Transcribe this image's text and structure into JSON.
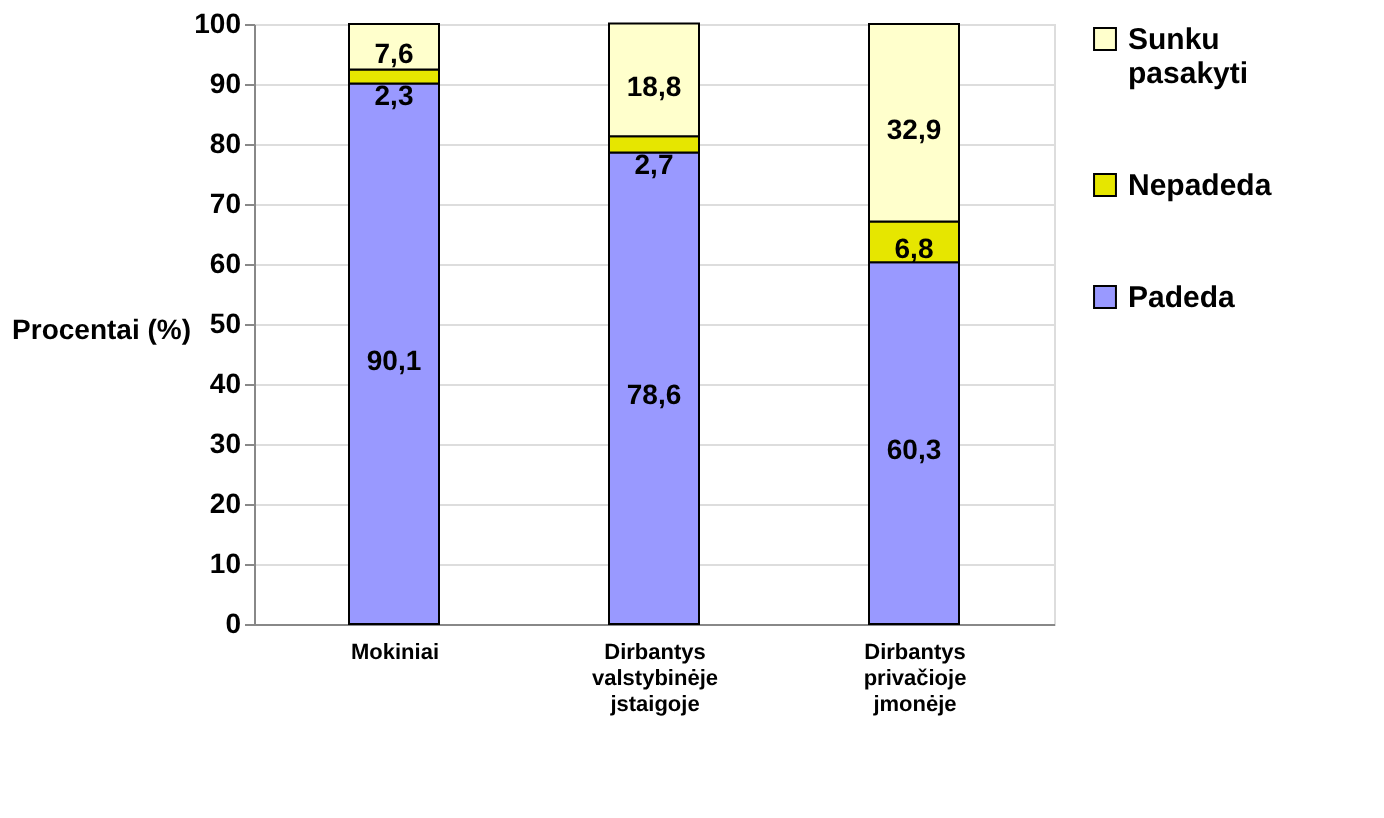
{
  "chart_data": {
    "type": "bar",
    "stacked": true,
    "ylabel": "Procentai (%)",
    "categories": [
      "Mokiniai",
      "Dirbantys valstybinėje jstaigoje",
      "Dirbantys privačioje jmonėje"
    ],
    "series": [
      {
        "name": "Padeda",
        "color": "#9999ff",
        "values": [
          90.1,
          78.6,
          60.3
        ],
        "value_labels": [
          "90,1",
          "78,6",
          "60,3"
        ]
      },
      {
        "name": "Nepadeda",
        "color": "#e6e600",
        "values": [
          2.3,
          2.7,
          6.8
        ],
        "value_labels": [
          "2,3",
          "2,7",
          "6,8"
        ]
      },
      {
        "name": "Sunku pasakyti",
        "color": "#ffffcc",
        "values": [
          7.6,
          18.8,
          32.9
        ],
        "value_labels": [
          "7,6",
          "18,8",
          "32,9"
        ]
      }
    ],
    "ylim": [
      0,
      100
    ],
    "yticks": [
      0,
      10,
      20,
      30,
      40,
      50,
      60,
      70,
      80,
      90,
      100
    ],
    "grid": "y",
    "legend": "right"
  }
}
